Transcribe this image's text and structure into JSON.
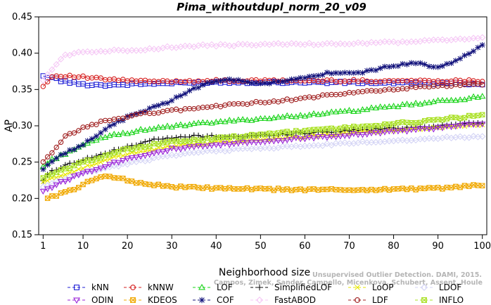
{
  "chart_data": {
    "type": "line",
    "title": "Pima_withoutdupl_norm_20_v09",
    "xlabel": "Neighborhood size",
    "ylabel": "AP",
    "xlim": [
      0,
      101
    ],
    "ylim": [
      0.15,
      0.45
    ],
    "x_ticks": [
      1,
      10,
      20,
      30,
      40,
      50,
      60,
      70,
      80,
      90,
      100
    ],
    "y_ticks": [
      0.15,
      0.2,
      0.25,
      0.3,
      0.35,
      0.4,
      0.45
    ],
    "y_tick_labels": [
      "0.15",
      "0.20",
      "0.25",
      "0.30",
      "0.35",
      "0.40",
      "0.45"
    ],
    "grid": false,
    "legend_position": "bottom",
    "x_range": [
      1,
      100
    ],
    "series": [
      {
        "name": "kNN",
        "color": "#1f1fd6",
        "marker": "square",
        "anchors": [
          [
            1,
            0.368
          ],
          [
            3,
            0.367
          ],
          [
            5,
            0.362
          ],
          [
            10,
            0.357
          ],
          [
            15,
            0.356
          ],
          [
            25,
            0.358
          ],
          [
            40,
            0.36
          ],
          [
            60,
            0.36
          ],
          [
            80,
            0.359
          ],
          [
            100,
            0.358
          ]
        ]
      },
      {
        "name": "kNNW",
        "color": "#d62020",
        "marker": "circle",
        "anchors": [
          [
            1,
            0.354
          ],
          [
            3,
            0.368
          ],
          [
            5,
            0.369
          ],
          [
            10,
            0.367
          ],
          [
            15,
            0.364
          ],
          [
            25,
            0.361
          ],
          [
            40,
            0.362
          ],
          [
            60,
            0.362
          ],
          [
            80,
            0.362
          ],
          [
            100,
            0.362
          ]
        ]
      },
      {
        "name": "LOF",
        "color": "#19d419",
        "marker": "triangle-up",
        "anchors": [
          [
            1,
            0.244
          ],
          [
            3,
            0.253
          ],
          [
            8,
            0.268
          ],
          [
            15,
            0.285
          ],
          [
            25,
            0.296
          ],
          [
            40,
            0.305
          ],
          [
            55,
            0.312
          ],
          [
            70,
            0.32
          ],
          [
            85,
            0.33
          ],
          [
            100,
            0.34
          ]
        ]
      },
      {
        "name": "SimplifiedLOF",
        "color": "#111111",
        "marker": "plus",
        "anchors": [
          [
            1,
            0.225
          ],
          [
            3,
            0.238
          ],
          [
            8,
            0.25
          ],
          [
            15,
            0.262
          ],
          [
            25,
            0.28
          ],
          [
            35,
            0.286
          ],
          [
            45,
            0.285
          ],
          [
            60,
            0.29
          ],
          [
            75,
            0.295
          ],
          [
            90,
            0.3
          ],
          [
            100,
            0.305
          ]
        ]
      },
      {
        "name": "LoOP",
        "color": "#e6e600",
        "marker": "x",
        "anchors": [
          [
            1,
            0.222
          ],
          [
            5,
            0.232
          ],
          [
            10,
            0.242
          ],
          [
            20,
            0.262
          ],
          [
            30,
            0.272
          ],
          [
            45,
            0.279
          ],
          [
            60,
            0.285
          ],
          [
            75,
            0.292
          ],
          [
            90,
            0.298
          ],
          [
            100,
            0.302
          ]
        ]
      },
      {
        "name": "LDOF",
        "color": "#d4d4f5",
        "marker": "diamond",
        "anchors": [
          [
            1,
            0.215
          ],
          [
            5,
            0.225
          ],
          [
            10,
            0.235
          ],
          [
            20,
            0.248
          ],
          [
            30,
            0.26
          ],
          [
            45,
            0.268
          ],
          [
            60,
            0.272
          ],
          [
            75,
            0.278
          ],
          [
            90,
            0.283
          ],
          [
            100,
            0.286
          ]
        ]
      },
      {
        "name": "ODIN",
        "color": "#9a22d8",
        "marker": "triangle-down",
        "anchors": [
          [
            1,
            0.21
          ],
          [
            5,
            0.222
          ],
          [
            10,
            0.235
          ],
          [
            20,
            0.255
          ],
          [
            30,
            0.268
          ],
          [
            45,
            0.276
          ],
          [
            60,
            0.283
          ],
          [
            75,
            0.29
          ],
          [
            90,
            0.297
          ],
          [
            100,
            0.303
          ]
        ]
      },
      {
        "name": "KDEOS",
        "color": "#f0a800",
        "marker": "square-x",
        "anchors": [
          [
            2,
            0.2
          ],
          [
            5,
            0.207
          ],
          [
            8,
            0.212
          ],
          [
            12,
            0.225
          ],
          [
            15,
            0.232
          ],
          [
            18,
            0.228
          ],
          [
            22,
            0.222
          ],
          [
            30,
            0.216
          ],
          [
            45,
            0.213
          ],
          [
            60,
            0.212
          ],
          [
            75,
            0.212
          ],
          [
            90,
            0.214
          ],
          [
            100,
            0.218
          ]
        ]
      },
      {
        "name": "COF",
        "color": "#10107a",
        "marker": "star",
        "anchors": [
          [
            1,
            0.24
          ],
          [
            3,
            0.252
          ],
          [
            6,
            0.262
          ],
          [
            10,
            0.275
          ],
          [
            15,
            0.295
          ],
          [
            20,
            0.312
          ],
          [
            30,
            0.335
          ],
          [
            38,
            0.36
          ],
          [
            45,
            0.364
          ],
          [
            50,
            0.357
          ],
          [
            55,
            0.362
          ],
          [
            60,
            0.366
          ],
          [
            65,
            0.372
          ],
          [
            70,
            0.372
          ],
          [
            75,
            0.376
          ],
          [
            80,
            0.383
          ],
          [
            85,
            0.386
          ],
          [
            90,
            0.381
          ],
          [
            95,
            0.392
          ],
          [
            100,
            0.41
          ]
        ]
      },
      {
        "name": "FastABOD",
        "color": "#f5c8f5",
        "marker": "diamond",
        "anchors": [
          [
            1,
            0.364
          ],
          [
            3,
            0.378
          ],
          [
            6,
            0.397
          ],
          [
            10,
            0.402
          ],
          [
            20,
            0.404
          ],
          [
            35,
            0.41
          ],
          [
            50,
            0.412
          ],
          [
            70,
            0.413
          ],
          [
            85,
            0.416
          ],
          [
            100,
            0.421
          ]
        ]
      },
      {
        "name": "LDF",
        "color": "#a02020",
        "marker": "circle",
        "anchors": [
          [
            1,
            0.25
          ],
          [
            3,
            0.262
          ],
          [
            6,
            0.285
          ],
          [
            10,
            0.297
          ],
          [
            15,
            0.307
          ],
          [
            25,
            0.318
          ],
          [
            40,
            0.327
          ],
          [
            55,
            0.335
          ],
          [
            70,
            0.345
          ],
          [
            85,
            0.353
          ],
          [
            100,
            0.357
          ]
        ]
      },
      {
        "name": "INFLO",
        "color": "#a8e020",
        "marker": "square-x",
        "anchors": [
          [
            1,
            0.228
          ],
          [
            5,
            0.238
          ],
          [
            10,
            0.25
          ],
          [
            20,
            0.268
          ],
          [
            30,
            0.278
          ],
          [
            45,
            0.285
          ],
          [
            60,
            0.293
          ],
          [
            75,
            0.3
          ],
          [
            90,
            0.308
          ],
          [
            100,
            0.315
          ]
        ]
      }
    ],
    "credit_lines": [
      "Unsupervised Outlier Detection. DAMI, 2015.",
      "Campos, Zimek, Sander, Campello, Micenkova, Schubert, Assent, Houle"
    ]
  }
}
